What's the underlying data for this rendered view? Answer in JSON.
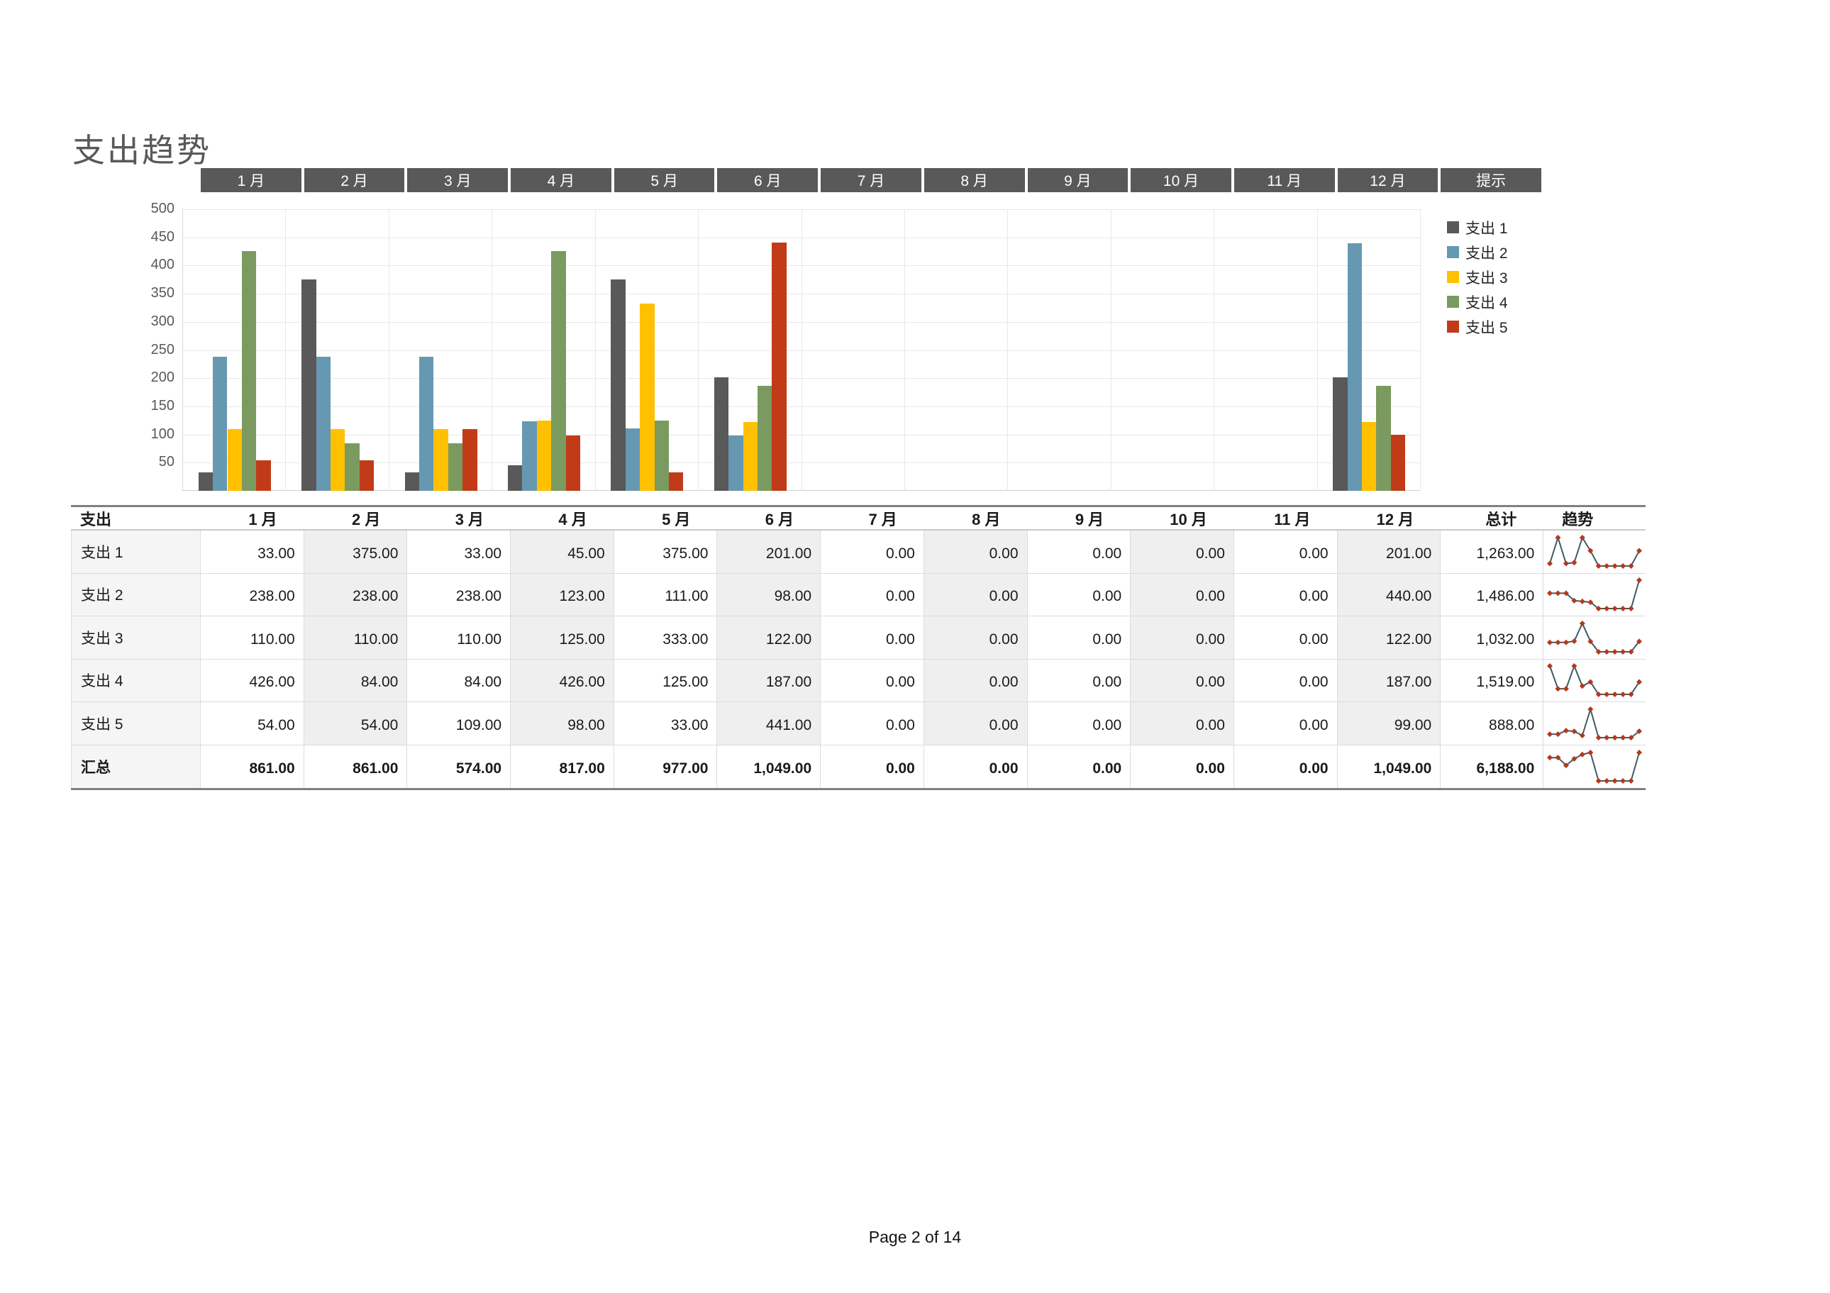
{
  "page": {
    "title": "支出趋势",
    "footer": "Page 2 of 14"
  },
  "months": [
    "1 月",
    "2 月",
    "3 月",
    "4 月",
    "5 月",
    "6 月",
    "7 月",
    "8 月",
    "9 月",
    "10 月",
    "11 月",
    "12 月"
  ],
  "hint_tab": "提示",
  "colors": {
    "tab_bg": "#595959",
    "title_text": "#595959",
    "sparkline_line": "#3F5A68",
    "sparkline_marker": "#B13A1C",
    "month_shade": "#EFEFEF",
    "label_shade": "#F5F5F5"
  },
  "chart_data": {
    "type": "bar",
    "title": "支出趋势",
    "categories": [
      "1 月",
      "2 月",
      "3 月",
      "4 月",
      "5 月",
      "6 月",
      "7 月",
      "8 月",
      "9 月",
      "10 月",
      "11 月",
      "12 月"
    ],
    "series": [
      {
        "name": "支出 1",
        "color": "#595959",
        "values": [
          33,
          375,
          33,
          45,
          375,
          201,
          0,
          0,
          0,
          0,
          0,
          201
        ]
      },
      {
        "name": "支出 2",
        "color": "#6698B2",
        "values": [
          238,
          238,
          238,
          123,
          111,
          98,
          0,
          0,
          0,
          0,
          0,
          440
        ]
      },
      {
        "name": "支出 3",
        "color": "#FFC000",
        "values": [
          110,
          110,
          110,
          125,
          333,
          122,
          0,
          0,
          0,
          0,
          0,
          122
        ]
      },
      {
        "name": "支出 4",
        "color": "#7B9A5F",
        "values": [
          426,
          84,
          84,
          426,
          125,
          187,
          0,
          0,
          0,
          0,
          0,
          187
        ]
      },
      {
        "name": "支出 5",
        "color": "#C13B18",
        "values": [
          54,
          54,
          109,
          98,
          33,
          441,
          0,
          0,
          0,
          0,
          0,
          99
        ]
      }
    ],
    "ylim": [
      0,
      500
    ],
    "ytick_step": 50,
    "grid": true,
    "legend_position": "right"
  },
  "table": {
    "corner_header": "支出",
    "total_header": "总计",
    "trend_header": "趋势",
    "rows": [
      {
        "label": "支出 1",
        "values": [
          33,
          375,
          33,
          45,
          375,
          201,
          0,
          0,
          0,
          0,
          0,
          201
        ],
        "total": 1263
      },
      {
        "label": "支出 2",
        "values": [
          238,
          238,
          238,
          123,
          111,
          98,
          0,
          0,
          0,
          0,
          0,
          440
        ],
        "total": 1486
      },
      {
        "label": "支出 3",
        "values": [
          110,
          110,
          110,
          125,
          333,
          122,
          0,
          0,
          0,
          0,
          0,
          122
        ],
        "total": 1032
      },
      {
        "label": "支出 4",
        "values": [
          426,
          84,
          84,
          426,
          125,
          187,
          0,
          0,
          0,
          0,
          0,
          187
        ],
        "total": 1519
      },
      {
        "label": "支出 5",
        "values": [
          54,
          54,
          109,
          98,
          33,
          441,
          0,
          0,
          0,
          0,
          0,
          99
        ],
        "total": 888
      }
    ],
    "summary": {
      "label": "汇总",
      "values": [
        861,
        861,
        574,
        817,
        977,
        1049,
        0,
        0,
        0,
        0,
        0,
        1049
      ],
      "total": 6188
    }
  }
}
